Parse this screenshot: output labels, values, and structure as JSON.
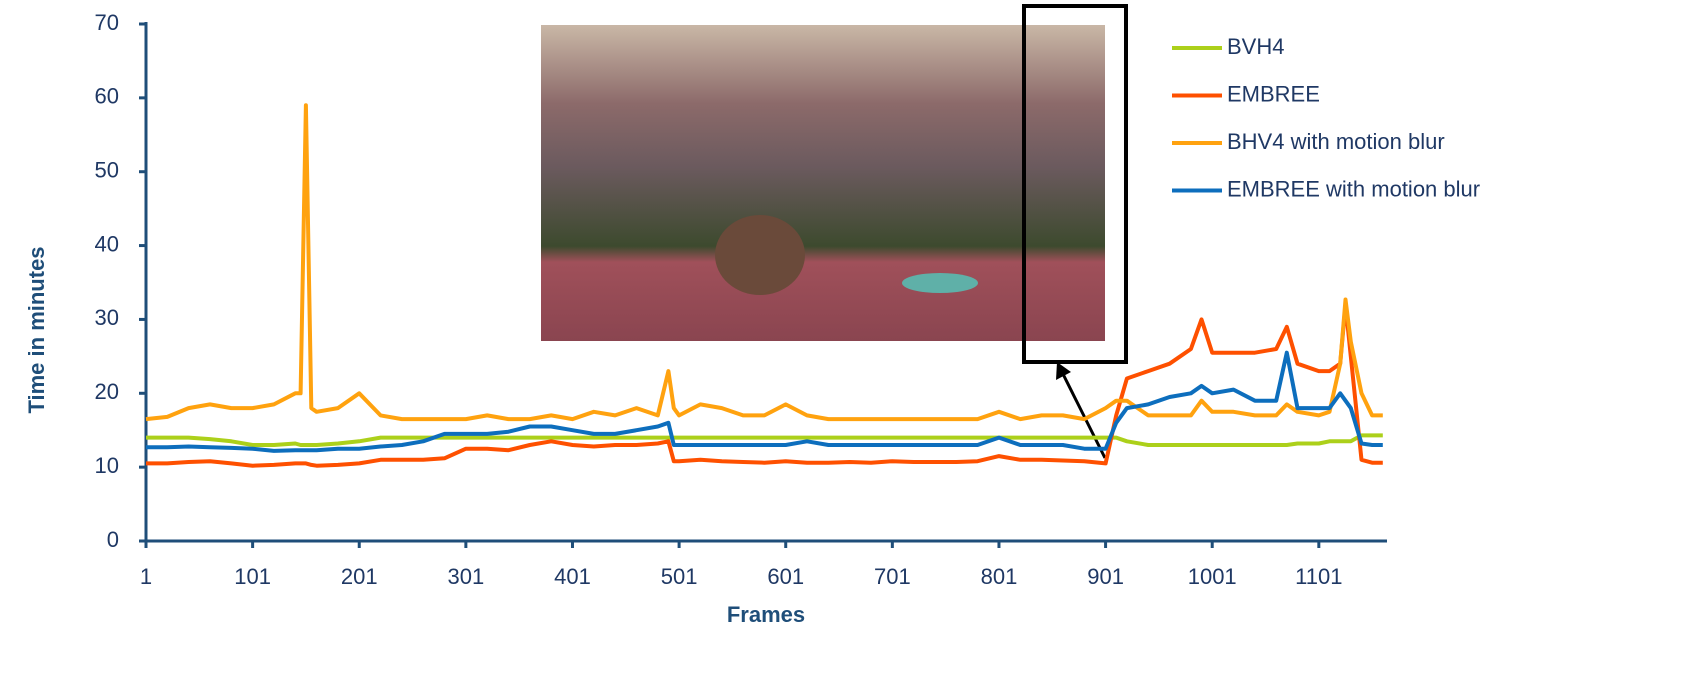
{
  "chart_data": {
    "type": "line",
    "xlabel": "Frames",
    "ylabel": "Time in minutes",
    "x": [
      1,
      21,
      41,
      61,
      81,
      101,
      121,
      141,
      146,
      151,
      156,
      161,
      181,
      201,
      221,
      241,
      261,
      281,
      301,
      321,
      341,
      361,
      381,
      401,
      421,
      441,
      461,
      481,
      491,
      496,
      501,
      521,
      541,
      561,
      581,
      601,
      621,
      641,
      661,
      681,
      701,
      721,
      741,
      761,
      781,
      801,
      821,
      841,
      861,
      881,
      901,
      911,
      921,
      941,
      961,
      981,
      991,
      1001,
      1021,
      1041,
      1061,
      1071,
      1081,
      1101,
      1111,
      1121,
      1126,
      1131,
      1141,
      1151,
      1161
    ],
    "series": [
      {
        "name": "BVH4",
        "color": "#acd01a",
        "values": [
          14,
          14,
          14,
          13.8,
          13.5,
          13,
          13,
          13.2,
          13,
          13,
          13,
          13,
          13.2,
          13.5,
          14,
          14,
          14,
          14,
          14,
          14,
          14,
          14,
          14,
          14,
          14,
          14,
          14,
          14,
          14,
          14,
          14,
          14,
          14,
          14,
          14,
          14,
          14,
          14,
          14,
          14,
          14,
          14,
          14,
          14,
          14,
          14,
          14,
          14,
          14,
          14,
          14,
          14,
          13.5,
          13,
          13,
          13,
          13,
          13,
          13,
          13,
          13,
          13,
          13.2,
          13.2,
          13.5,
          13.5,
          13.5,
          13.5,
          14.3,
          14.3,
          14.3
        ]
      },
      {
        "name": "EMBREE",
        "color": "#fe5000",
        "values": [
          10.5,
          10.5,
          10.7,
          10.8,
          10.5,
          10.2,
          10.3,
          10.5,
          10.5,
          10.5,
          10.3,
          10.2,
          10.3,
          10.5,
          11,
          11,
          11,
          11.2,
          12.5,
          12.5,
          12.3,
          13,
          13.5,
          13,
          12.8,
          13,
          13,
          13.2,
          13.5,
          10.8,
          10.8,
          11,
          10.8,
          10.7,
          10.6,
          10.8,
          10.6,
          10.6,
          10.7,
          10.6,
          10.8,
          10.7,
          10.7,
          10.7,
          10.8,
          11.5,
          11,
          11,
          10.9,
          10.8,
          10.5,
          17,
          22,
          23,
          24,
          26,
          30,
          25.5,
          25.5,
          25.5,
          26,
          29,
          24,
          23,
          23,
          24,
          32,
          25,
          11,
          10.6,
          10.6
        ]
      },
      {
        "name": "BHV4 with motion blur",
        "color": "#ffa20f",
        "values": [
          16.5,
          16.8,
          18,
          18.5,
          18,
          18,
          18.5,
          20,
          20,
          59,
          18,
          17.5,
          18,
          20,
          17,
          16.5,
          16.5,
          16.5,
          16.5,
          17,
          16.5,
          16.5,
          17,
          16.5,
          17.5,
          17,
          18,
          17,
          23,
          18,
          17,
          18.5,
          18,
          17,
          17,
          18.5,
          17,
          16.5,
          16.5,
          16.5,
          16.5,
          16.5,
          16.5,
          16.5,
          16.5,
          17.5,
          16.5,
          17,
          17,
          16.5,
          18,
          19,
          19,
          17,
          17,
          17,
          19,
          17.5,
          17.5,
          17,
          17,
          18.5,
          17.5,
          17,
          17.5,
          24,
          32.7,
          27,
          20,
          17,
          17
        ]
      },
      {
        "name": "EMBREE with motion blur",
        "color": "#0d6ebd",
        "values": [
          12.7,
          12.7,
          12.8,
          12.7,
          12.6,
          12.5,
          12.2,
          12.3,
          12.3,
          12.3,
          12.3,
          12.3,
          12.5,
          12.5,
          12.8,
          13,
          13.5,
          14.5,
          14.5,
          14.5,
          14.8,
          15.5,
          15.5,
          15,
          14.5,
          14.5,
          15,
          15.5,
          16,
          13,
          13,
          13,
          13,
          13,
          13,
          13,
          13.5,
          13,
          13,
          13,
          13,
          13,
          13,
          13,
          13,
          14,
          13,
          13,
          13,
          12.5,
          12.5,
          16,
          18,
          18.5,
          19.5,
          20,
          21,
          20,
          20.5,
          19,
          19,
          25.5,
          18,
          18,
          18,
          20,
          19,
          18,
          13.2,
          13,
          13
        ]
      }
    ],
    "xlim": [
      1,
      1164
    ],
    "xticks": [
      1,
      101,
      201,
      301,
      401,
      501,
      601,
      701,
      801,
      901,
      1001,
      1101
    ],
    "ylim": [
      0,
      70
    ],
    "yticks": [
      0,
      10,
      20,
      30,
      40,
      50,
      60,
      70
    ]
  }
}
